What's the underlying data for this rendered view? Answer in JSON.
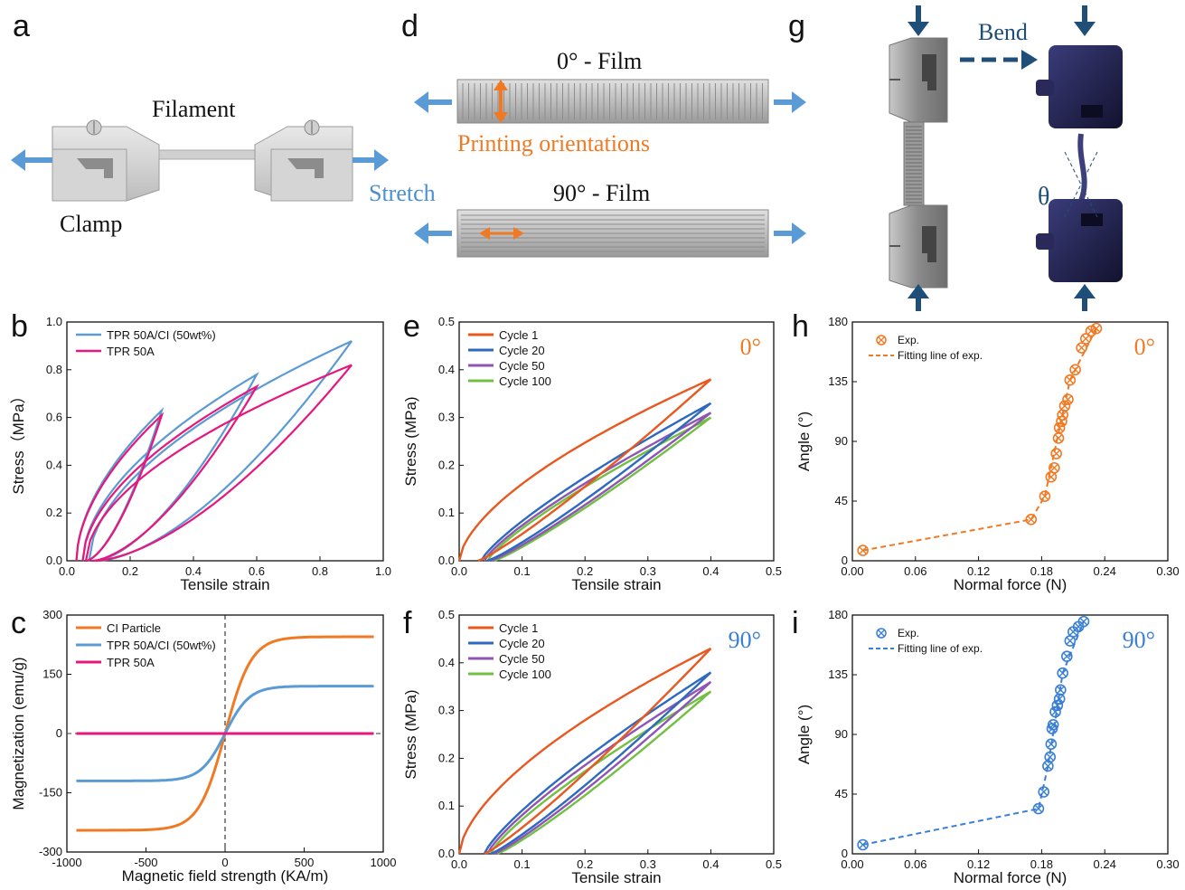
{
  "schematics": {
    "a": {
      "letter": "a",
      "filament": "Filament",
      "stretch": "Stretch",
      "clamp": "Clamp"
    },
    "d": {
      "letter": "d",
      "film0": "0° - Film",
      "orientations": "Printing orientations",
      "film90": "90° - Film"
    },
    "g": {
      "letter": "g",
      "bend": "Bend",
      "theta": "θ"
    }
  },
  "colors": {
    "blue_light": "#5B9BD5",
    "pink": "#E6177D",
    "orange": "#F07A24",
    "orange_cycle": "#E8581F",
    "blue_cycle": "#2E69C0",
    "purple": "#8E55B4",
    "green": "#72C043",
    "blue_fit": "#3A7FD4",
    "navy": "#1F4E79"
  },
  "chart_data": [
    {
      "panel": "b",
      "type": "line",
      "xlabel": "Tensile strain",
      "ylabel": "Stress（MPa）",
      "xlim": [
        0,
        1.0
      ],
      "ylim": [
        0,
        1.0
      ],
      "xticks": [
        "0.0",
        "0.2",
        "0.4",
        "0.6",
        "0.8",
        "1.0"
      ],
      "yticks": [
        "0.0",
        "0.2",
        "0.4",
        "0.6",
        "0.8",
        "1.0"
      ],
      "legend": "top-left",
      "series": [
        {
          "name": "TPR 50A/CI (50wt%)",
          "color": "#5B9BD5",
          "cycles": [
            [
              0.03,
              0.3,
              0.63,
              0.06
            ],
            [
              0.05,
              0.6,
              0.78,
              0.09
            ],
            [
              0.07,
              0.9,
              0.92,
              0.1
            ]
          ]
        },
        {
          "name": "TPR 50A",
          "color": "#E6177D",
          "cycles": [
            [
              0.03,
              0.3,
              0.61,
              0.06
            ],
            [
              0.05,
              0.6,
              0.73,
              0.08
            ],
            [
              0.06,
              0.9,
              0.82,
              0.09
            ]
          ]
        }
      ]
    },
    {
      "panel": "c",
      "type": "line",
      "xlabel": "Magnetic field strength (KA/m)",
      "ylabel": "Magnetization (emu/g)",
      "xlim": [
        -1000,
        1000
      ],
      "ylim": [
        -300,
        300
      ],
      "xticks": [
        "-1000",
        "-500",
        "0",
        "500",
        "1000"
      ],
      "yticks": [
        "-300",
        "-150",
        "0",
        "150",
        "300"
      ],
      "legend": "top-left",
      "series": [
        {
          "name": "CI Particle",
          "color": "#F07A24",
          "ms": 245,
          "k": 0.006
        },
        {
          "name": "TPR 50A/CI (50wt%)",
          "color": "#5B9BD5",
          "ms": 120,
          "k": 0.0065
        },
        {
          "name": "TPR 50A",
          "color": "#E6177D",
          "ms": 0,
          "k": 0
        }
      ]
    },
    {
      "panel": "e",
      "type": "line",
      "xlabel": "Tensile strain",
      "ylabel": "Stress (MPa)",
      "xlim": [
        0,
        0.5
      ],
      "ylim": [
        0,
        0.5
      ],
      "xticks": [
        "0.0",
        "0.1",
        "0.2",
        "0.3",
        "0.4",
        "0.5"
      ],
      "yticks": [
        "0.0",
        "0.1",
        "0.2",
        "0.3",
        "0.4",
        "0.5"
      ],
      "annotation": "0°",
      "series": [
        {
          "name": "Cycle 1",
          "color": "#E8581F",
          "start": 0.0,
          "ret": 0.03,
          "peak": 0.38
        },
        {
          "name": "Cycle 20",
          "color": "#2E69C0",
          "start": 0.035,
          "ret": 0.045,
          "peak": 0.33
        },
        {
          "name": "Cycle 50",
          "color": "#8E55B4",
          "start": 0.04,
          "ret": 0.05,
          "peak": 0.31
        },
        {
          "name": "Cycle 100",
          "color": "#72C043",
          "start": 0.045,
          "ret": 0.055,
          "peak": 0.3
        }
      ]
    },
    {
      "panel": "f",
      "type": "line",
      "xlabel": "Tensile strain",
      "ylabel": "Stress (MPa)",
      "xlim": [
        0,
        0.5
      ],
      "ylim": [
        0,
        0.5
      ],
      "xticks": [
        "0.0",
        "0.1",
        "0.2",
        "0.3",
        "0.4",
        "0.5"
      ],
      "yticks": [
        "0.0",
        "0.1",
        "0.2",
        "0.3",
        "0.4",
        "0.5"
      ],
      "annotation": "90°",
      "series": [
        {
          "name": "Cycle 1",
          "color": "#E8581F",
          "start": 0.0,
          "ret": 0.04,
          "peak": 0.43
        },
        {
          "name": "Cycle 20",
          "color": "#2E69C0",
          "start": 0.04,
          "ret": 0.05,
          "peak": 0.38
        },
        {
          "name": "Cycle 50",
          "color": "#8E55B4",
          "start": 0.045,
          "ret": 0.055,
          "peak": 0.36
        },
        {
          "name": "Cycle 100",
          "color": "#72C043",
          "start": 0.05,
          "ret": 0.06,
          "peak": 0.34
        }
      ]
    },
    {
      "panel": "h",
      "type": "scatter",
      "xlabel": "Normal force (N)",
      "ylabel": "Angle (°)",
      "xlim": [
        0,
        0.3
      ],
      "ylim": [
        0,
        185
      ],
      "xticks": [
        "0.00",
        "0.06",
        "0.12",
        "0.18",
        "0.24",
        "0.30"
      ],
      "yticks": [
        "0",
        "45",
        "90",
        "135",
        "180"
      ],
      "annotation": "0°",
      "color": "#F07A24",
      "series": [
        {
          "name": "Exp.",
          "x": [
            0.01,
            0.17,
            0.183,
            0.189,
            0.192,
            0.194,
            0.196,
            0.197,
            0.199,
            0.2,
            0.202,
            0.205,
            0.207,
            0.212,
            0.218,
            0.222,
            0.227,
            0.232
          ],
          "y": [
            8,
            32,
            50,
            65,
            72,
            83,
            95,
            103,
            108,
            113,
            120,
            125,
            140,
            148,
            165,
            172,
            178,
            180
          ]
        },
        {
          "name": "Fitting line of exp.",
          "x": [
            0.01,
            0.17,
            0.183,
            0.207,
            0.232
          ],
          "y": [
            8,
            32,
            50,
            140,
            180
          ]
        }
      ]
    },
    {
      "panel": "i",
      "type": "scatter",
      "xlabel": "Normal force (N)",
      "ylabel": "Angle (°)",
      "xlim": [
        0,
        0.3
      ],
      "ylim": [
        0,
        185
      ],
      "xticks": [
        "0.00",
        "0.06",
        "0.12",
        "0.18",
        "0.24",
        "0.30"
      ],
      "yticks": [
        "0",
        "45",
        "90",
        "135",
        "180"
      ],
      "annotation": "90°",
      "color": "#3A7FD4",
      "series": [
        {
          "name": "Exp.",
          "x": [
            0.01,
            0.177,
            0.182,
            0.186,
            0.188,
            0.189,
            0.19,
            0.191,
            0.193,
            0.195,
            0.197,
            0.198,
            0.2,
            0.204,
            0.207,
            0.21,
            0.215,
            0.22
          ],
          "y": [
            7,
            35,
            48,
            68,
            75,
            85,
            97,
            100,
            110,
            115,
            120,
            127,
            140,
            153,
            165,
            172,
            176,
            180
          ]
        },
        {
          "name": "Fitting line of exp.",
          "x": [
            0.01,
            0.177,
            0.186,
            0.2,
            0.22
          ],
          "y": [
            7,
            35,
            68,
            140,
            180
          ]
        }
      ]
    }
  ]
}
